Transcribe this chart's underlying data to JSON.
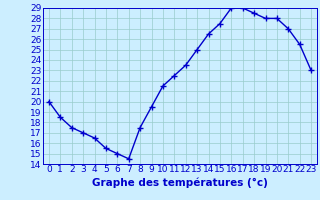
{
  "hours": [
    0,
    1,
    2,
    3,
    4,
    5,
    6,
    7,
    8,
    9,
    10,
    11,
    12,
    13,
    14,
    15,
    16,
    17,
    18,
    19,
    20,
    21,
    22,
    23
  ],
  "temps": [
    20.0,
    18.5,
    17.5,
    17.0,
    16.5,
    15.5,
    15.0,
    14.5,
    17.5,
    19.5,
    21.5,
    22.5,
    23.5,
    25.0,
    26.5,
    27.5,
    29.0,
    29.0,
    28.5,
    28.0,
    28.0,
    27.0,
    25.5,
    23.0
  ],
  "line_color": "#0000cc",
  "marker": "+",
  "marker_size": 4,
  "marker_color": "#0000cc",
  "bg_color": "#cceeff",
  "grid_color": "#99cccc",
  "axis_label_color": "#0000cc",
  "tick_color": "#0000cc",
  "xlabel": "Graphe des températures (°c)",
  "xlim": [
    -0.5,
    23.5
  ],
  "ylim": [
    14,
    29
  ],
  "yticks": [
    14,
    15,
    16,
    17,
    18,
    19,
    20,
    21,
    22,
    23,
    24,
    25,
    26,
    27,
    28,
    29
  ],
  "xticks": [
    0,
    1,
    2,
    3,
    4,
    5,
    6,
    7,
    8,
    9,
    10,
    11,
    12,
    13,
    14,
    15,
    16,
    17,
    18,
    19,
    20,
    21,
    22,
    23
  ],
  "xlabel_fontsize": 7.5,
  "tick_fontsize": 6.5,
  "line_width": 1.0
}
